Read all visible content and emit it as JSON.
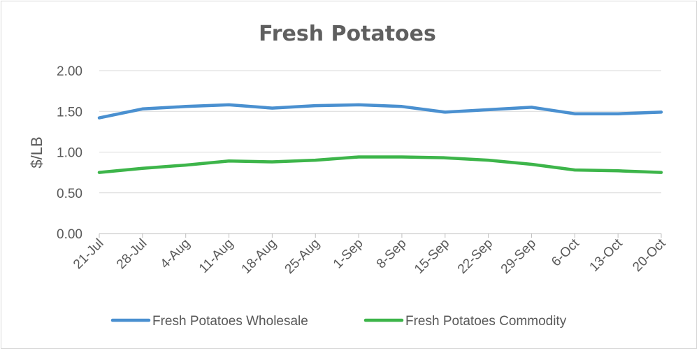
{
  "chart_data": {
    "type": "line",
    "title": "Fresh Potatoes",
    "xlabel": "",
    "ylabel": "$/LB",
    "ylim": [
      0,
      2
    ],
    "yticks": [
      "0.00",
      "0.50",
      "1.00",
      "1.50",
      "2.00"
    ],
    "grid": true,
    "legend_position": "bottom",
    "categories": [
      "21-Jul",
      "28-Jul",
      "4-Aug",
      "11-Aug",
      "18-Aug",
      "25-Aug",
      "1-Sep",
      "8-Sep",
      "15-Sep",
      "22-Sep",
      "29-Sep",
      "6-Oct",
      "13-Oct",
      "20-Oct"
    ],
    "series": [
      {
        "name": "Fresh Potatoes Wholesale",
        "color": "#4a90d0",
        "values": [
          1.42,
          1.53,
          1.56,
          1.58,
          1.54,
          1.57,
          1.58,
          1.56,
          1.49,
          1.52,
          1.55,
          1.47,
          1.47,
          1.49
        ]
      },
      {
        "name": "Fresh Potatoes Commodity",
        "color": "#3db54a",
        "values": [
          0.75,
          0.8,
          0.84,
          0.89,
          0.88,
          0.9,
          0.94,
          0.94,
          0.93,
          0.9,
          0.85,
          0.78,
          0.77,
          0.75
        ]
      }
    ]
  }
}
